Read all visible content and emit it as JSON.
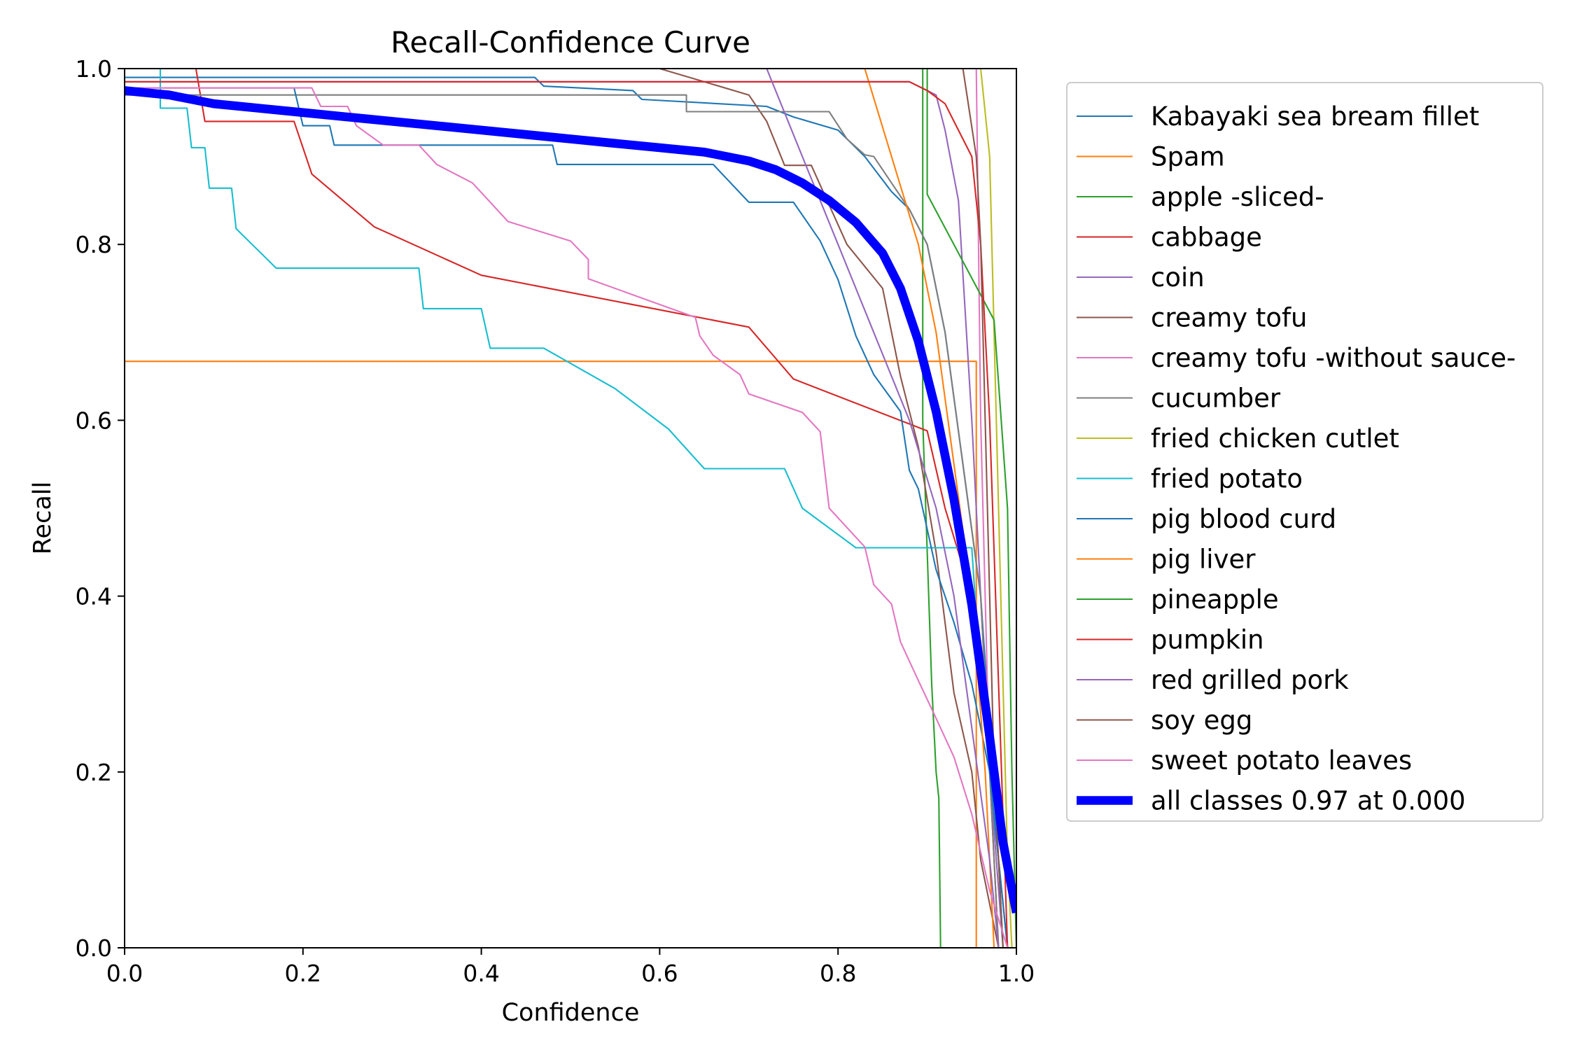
{
  "chart_data": {
    "type": "line",
    "title": "Recall-Confidence Curve",
    "xlabel": "Confidence",
    "ylabel": "Recall",
    "xlim": [
      0,
      1
    ],
    "ylim": [
      0,
      1
    ],
    "xticks": [
      "0.0",
      "0.2",
      "0.4",
      "0.6",
      "0.8",
      "1.0"
    ],
    "yticks": [
      "0.0",
      "0.2",
      "0.4",
      "0.6",
      "0.8",
      "1.0"
    ],
    "grid": false,
    "legend_position": "outside-right",
    "series": [
      {
        "name": "Kabayaki sea bream fillet",
        "color": "#1f77b4",
        "width": 1,
        "points": [
          [
            0,
            0.99
          ],
          [
            0.46,
            0.99
          ],
          [
            0.47,
            0.98
          ],
          [
            0.57,
            0.975
          ],
          [
            0.58,
            0.965
          ],
          [
            0.72,
            0.957
          ],
          [
            0.75,
            0.945
          ],
          [
            0.8,
            0.93
          ],
          [
            0.83,
            0.9
          ],
          [
            0.86,
            0.86
          ],
          [
            0.88,
            0.84
          ],
          [
            0.9,
            0.8
          ],
          [
            0.92,
            0.7
          ],
          [
            0.94,
            0.55
          ],
          [
            0.96,
            0.4
          ],
          [
            0.97,
            0.25
          ],
          [
            0.98,
            0.1
          ],
          [
            0.99,
            0.0
          ]
        ]
      },
      {
        "name": "Spam",
        "color": "#ff7f0e",
        "width": 1,
        "points": [
          [
            0,
            0.667
          ],
          [
            0.955,
            0.667
          ],
          [
            0.955,
            0.0
          ]
        ]
      },
      {
        "name": "apple -sliced-",
        "color": "#2ca02c",
        "width": 1,
        "points": [
          [
            0,
            1.0
          ],
          [
            0.895,
            1.0
          ],
          [
            0.895,
            0.6
          ],
          [
            0.905,
            0.3
          ],
          [
            0.91,
            0.2
          ],
          [
            0.913,
            0.17
          ],
          [
            0.915,
            0.0
          ]
        ]
      },
      {
        "name": "cabbage",
        "color": "#d62728",
        "width": 1,
        "points": [
          [
            0.08,
            1.0
          ],
          [
            0.09,
            0.94
          ],
          [
            0.19,
            0.94
          ],
          [
            0.21,
            0.88
          ],
          [
            0.28,
            0.82
          ],
          [
            0.4,
            0.765
          ],
          [
            0.7,
            0.706
          ],
          [
            0.75,
            0.647
          ],
          [
            0.9,
            0.588
          ],
          [
            0.92,
            0.5
          ],
          [
            0.95,
            0.4
          ],
          [
            0.97,
            0.2
          ],
          [
            0.98,
            0.0
          ]
        ]
      },
      {
        "name": "coin",
        "color": "#9467bd",
        "width": 1,
        "points": [
          [
            0,
            0.985
          ],
          [
            0.88,
            0.985
          ],
          [
            0.91,
            0.97
          ],
          [
            0.92,
            0.93
          ],
          [
            0.935,
            0.85
          ],
          [
            0.95,
            0.6
          ],
          [
            0.96,
            0.4
          ],
          [
            0.97,
            0.2
          ],
          [
            0.985,
            0.0
          ]
        ]
      },
      {
        "name": "creamy tofu",
        "color": "#8c564b",
        "width": 1,
        "points": [
          [
            0.6,
            1.0
          ],
          [
            0.7,
            0.97
          ],
          [
            0.72,
            0.94
          ],
          [
            0.74,
            0.89
          ],
          [
            0.77,
            0.89
          ],
          [
            0.81,
            0.8
          ],
          [
            0.85,
            0.75
          ],
          [
            0.87,
            0.65
          ],
          [
            0.89,
            0.57
          ],
          [
            0.91,
            0.45
          ],
          [
            0.93,
            0.29
          ],
          [
            0.95,
            0.2
          ],
          [
            0.96,
            0.1
          ],
          [
            0.98,
            0.0
          ]
        ]
      },
      {
        "name": "creamy tofu -without sauce-",
        "color": "#e377c2",
        "width": 1,
        "points": [
          [
            0.955,
            1.0
          ],
          [
            0.96,
            0.6
          ],
          [
            0.965,
            0.4
          ],
          [
            0.97,
            0.2
          ],
          [
            0.98,
            0.1
          ],
          [
            0.99,
            0.0
          ]
        ]
      },
      {
        "name": "cucumber",
        "color": "#7f7f7f",
        "width": 1,
        "points": [
          [
            0,
            0.97
          ],
          [
            0.63,
            0.97
          ],
          [
            0.63,
            0.951
          ],
          [
            0.79,
            0.951
          ],
          [
            0.81,
            0.92
          ],
          [
            0.83,
            0.902
          ],
          [
            0.84,
            0.9
          ],
          [
            0.86,
            0.87
          ],
          [
            0.88,
            0.84
          ],
          [
            0.9,
            0.8
          ],
          [
            0.92,
            0.7
          ],
          [
            0.94,
            0.55
          ],
          [
            0.96,
            0.4
          ],
          [
            0.97,
            0.2
          ],
          [
            0.98,
            0.0
          ]
        ]
      },
      {
        "name": "fried chicken cutlet",
        "color": "#bcbd22",
        "width": 1,
        "points": [
          [
            0.96,
            1.0
          ],
          [
            0.97,
            0.9
          ],
          [
            0.975,
            0.7
          ],
          [
            0.98,
            0.5
          ],
          [
            0.985,
            0.3
          ],
          [
            0.99,
            0.1
          ],
          [
            0.995,
            0.0
          ]
        ]
      },
      {
        "name": "fried potato",
        "color": "#17becf",
        "width": 1,
        "points": [
          [
            0.04,
            1.0
          ],
          [
            0.04,
            0.955
          ],
          [
            0.07,
            0.955
          ],
          [
            0.075,
            0.91
          ],
          [
            0.09,
            0.91
          ],
          [
            0.095,
            0.864
          ],
          [
            0.12,
            0.864
          ],
          [
            0.125,
            0.818
          ],
          [
            0.17,
            0.773
          ],
          [
            0.33,
            0.773
          ],
          [
            0.335,
            0.727
          ],
          [
            0.4,
            0.727
          ],
          [
            0.41,
            0.682
          ],
          [
            0.47,
            0.682
          ],
          [
            0.55,
            0.636
          ],
          [
            0.61,
            0.59
          ],
          [
            0.65,
            0.545
          ],
          [
            0.74,
            0.545
          ],
          [
            0.76,
            0.5
          ],
          [
            0.82,
            0.455
          ],
          [
            0.95,
            0.455
          ],
          [
            0.96,
            0.3
          ],
          [
            0.98,
            0.1
          ],
          [
            0.985,
            0.0
          ]
        ]
      },
      {
        "name": "pig blood curd",
        "color": "#1f77b4",
        "width": 1,
        "points": [
          [
            0,
            0.978
          ],
          [
            0.19,
            0.978
          ],
          [
            0.2,
            0.935
          ],
          [
            0.23,
            0.935
          ],
          [
            0.235,
            0.913
          ],
          [
            0.48,
            0.913
          ],
          [
            0.485,
            0.891
          ],
          [
            0.66,
            0.891
          ],
          [
            0.7,
            0.848
          ],
          [
            0.75,
            0.848
          ],
          [
            0.78,
            0.804
          ],
          [
            0.8,
            0.76
          ],
          [
            0.82,
            0.696
          ],
          [
            0.84,
            0.652
          ],
          [
            0.87,
            0.61
          ],
          [
            0.88,
            0.543
          ],
          [
            0.89,
            0.522
          ],
          [
            0.91,
            0.43
          ],
          [
            0.93,
            0.37
          ],
          [
            0.95,
            0.3
          ],
          [
            0.97,
            0.2
          ],
          [
            0.98,
            0.1
          ],
          [
            0.99,
            0.0
          ]
        ]
      },
      {
        "name": "pig liver",
        "color": "#ff7f0e",
        "width": 1,
        "points": [
          [
            0.83,
            1.0
          ],
          [
            0.86,
            0.9
          ],
          [
            0.89,
            0.8
          ],
          [
            0.91,
            0.7
          ],
          [
            0.93,
            0.55
          ],
          [
            0.95,
            0.4
          ],
          [
            0.965,
            0.2
          ],
          [
            0.975,
            0.0
          ]
        ]
      },
      {
        "name": "pineapple",
        "color": "#2ca02c",
        "width": 1,
        "points": [
          [
            0.9,
            1.0
          ],
          [
            0.9,
            0.857
          ],
          [
            0.975,
            0.714
          ],
          [
            0.99,
            0.5
          ],
          [
            0.995,
            0.2
          ],
          [
            1.0,
            0.0
          ]
        ]
      },
      {
        "name": "pumpkin",
        "color": "#d62728",
        "width": 1,
        "points": [
          [
            0,
            0.985
          ],
          [
            0.88,
            0.985
          ],
          [
            0.9,
            0.975
          ],
          [
            0.92,
            0.96
          ],
          [
            0.93,
            0.94
          ],
          [
            0.95,
            0.9
          ],
          [
            0.96,
            0.8
          ],
          [
            0.97,
            0.6
          ],
          [
            0.98,
            0.3
          ],
          [
            0.99,
            0.0
          ]
        ]
      },
      {
        "name": "red grilled pork",
        "color": "#9467bd",
        "width": 1,
        "points": [
          [
            0.72,
            1.0
          ],
          [
            0.76,
            0.9
          ],
          [
            0.8,
            0.8
          ],
          [
            0.84,
            0.7
          ],
          [
            0.88,
            0.6
          ],
          [
            0.91,
            0.5
          ],
          [
            0.93,
            0.4
          ],
          [
            0.95,
            0.25
          ],
          [
            0.97,
            0.1
          ],
          [
            0.98,
            0.0
          ]
        ]
      },
      {
        "name": "soy egg",
        "color": "#8c564b",
        "width": 1,
        "points": [
          [
            0.94,
            1.0
          ],
          [
            0.955,
            0.9
          ],
          [
            0.96,
            0.8
          ],
          [
            0.965,
            0.6
          ],
          [
            0.97,
            0.4
          ],
          [
            0.975,
            0.2
          ],
          [
            0.985,
            0.0
          ]
        ]
      },
      {
        "name": "sweet potato leaves",
        "color": "#e377c2",
        "width": 1,
        "points": [
          [
            0,
            0.978
          ],
          [
            0.21,
            0.978
          ],
          [
            0.22,
            0.957
          ],
          [
            0.25,
            0.957
          ],
          [
            0.26,
            0.935
          ],
          [
            0.29,
            0.913
          ],
          [
            0.33,
            0.913
          ],
          [
            0.35,
            0.891
          ],
          [
            0.39,
            0.87
          ],
          [
            0.43,
            0.826
          ],
          [
            0.5,
            0.804
          ],
          [
            0.52,
            0.783
          ],
          [
            0.52,
            0.761
          ],
          [
            0.64,
            0.717
          ],
          [
            0.645,
            0.696
          ],
          [
            0.66,
            0.674
          ],
          [
            0.69,
            0.652
          ],
          [
            0.7,
            0.63
          ],
          [
            0.76,
            0.609
          ],
          [
            0.78,
            0.587
          ],
          [
            0.79,
            0.5
          ],
          [
            0.81,
            0.478
          ],
          [
            0.83,
            0.456
          ],
          [
            0.84,
            0.413
          ],
          [
            0.86,
            0.391
          ],
          [
            0.87,
            0.348
          ],
          [
            0.89,
            0.304
          ],
          [
            0.91,
            0.261
          ],
          [
            0.93,
            0.217
          ],
          [
            0.95,
            0.152
          ],
          [
            0.97,
            0.065
          ],
          [
            0.99,
            0.0
          ]
        ]
      },
      {
        "name": "all classes 0.97 at 0.000",
        "color": "#0000ff",
        "width": 6,
        "points": [
          [
            0,
            0.975
          ],
          [
            0.05,
            0.97
          ],
          [
            0.1,
            0.96
          ],
          [
            0.15,
            0.955
          ],
          [
            0.2,
            0.95
          ],
          [
            0.25,
            0.945
          ],
          [
            0.3,
            0.94
          ],
          [
            0.35,
            0.935
          ],
          [
            0.4,
            0.93
          ],
          [
            0.45,
            0.925
          ],
          [
            0.5,
            0.92
          ],
          [
            0.55,
            0.915
          ],
          [
            0.6,
            0.91
          ],
          [
            0.65,
            0.905
          ],
          [
            0.7,
            0.895
          ],
          [
            0.73,
            0.885
          ],
          [
            0.76,
            0.87
          ],
          [
            0.79,
            0.85
          ],
          [
            0.82,
            0.825
          ],
          [
            0.85,
            0.79
          ],
          [
            0.87,
            0.75
          ],
          [
            0.89,
            0.69
          ],
          [
            0.91,
            0.61
          ],
          [
            0.93,
            0.51
          ],
          [
            0.95,
            0.39
          ],
          [
            0.97,
            0.24
          ],
          [
            0.985,
            0.12
          ],
          [
            1.0,
            0.04
          ]
        ]
      }
    ]
  }
}
